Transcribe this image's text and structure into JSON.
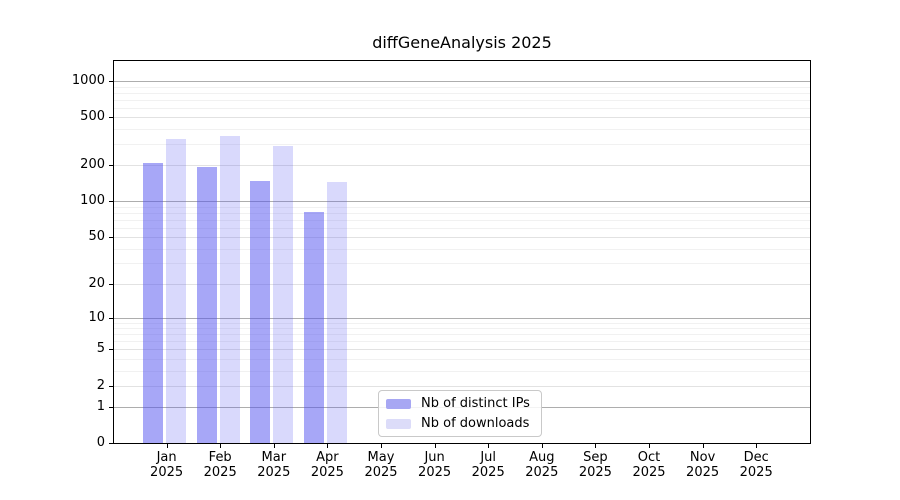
{
  "figure": {
    "background": "#ffffff"
  },
  "chart_data": {
    "type": "bar",
    "title": "diffGeneAnalysis 2025",
    "months": [
      "Jan",
      "Feb",
      "Mar",
      "Apr",
      "May",
      "Jun",
      "Jul",
      "Aug",
      "Sep",
      "Oct",
      "Nov",
      "Dec"
    ],
    "year": "2025",
    "categories": [
      "Jan 2025",
      "Feb 2025",
      "Mar 2025",
      "Apr 2025",
      "May 2025",
      "Jun 2025",
      "Jul 2025",
      "Aug 2025",
      "Sep 2025",
      "Oct 2025",
      "Nov 2025",
      "Dec 2025"
    ],
    "series": [
      {
        "name": "Nb of distinct IPs",
        "legend_color": "#a7a7f3",
        "bar_color": "rgba(80,80,240,0.5)",
        "values": [
          210,
          194,
          148,
          82,
          null,
          null,
          null,
          null,
          null,
          null,
          null,
          null
        ]
      },
      {
        "name": "Nb of downloads",
        "legend_color": "#dcdcf9",
        "bar_color": "rgba(80,80,240,0.22)",
        "values": [
          332,
          348,
          290,
          146,
          null,
          null,
          null,
          null,
          null,
          null,
          null,
          null
        ]
      }
    ],
    "y_axis": {
      "scale": "log10(1+y)",
      "ticks": [
        1000,
        500,
        200,
        100,
        50,
        20,
        10,
        5,
        2,
        1,
        0
      ],
      "minor_gridlines": [
        900,
        800,
        700,
        600,
        400,
        300,
        90,
        80,
        70,
        60,
        40,
        30,
        9,
        8,
        7,
        6,
        4,
        3
      ]
    },
    "grid": true,
    "legend_position": "lower center (inside plot)",
    "colors": {
      "major_gridline": "#adadad",
      "tick_gridline": "#e2e2e2",
      "minor_gridline": "#f1f1f1",
      "spine": "#000000"
    }
  }
}
